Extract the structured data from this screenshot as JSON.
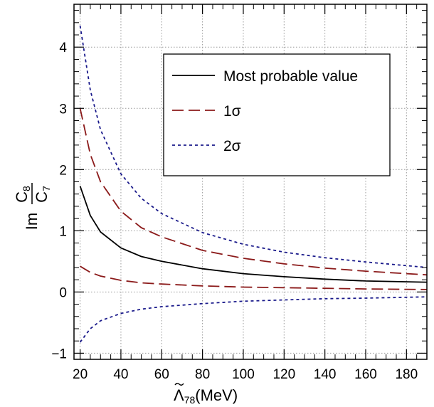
{
  "chart_data": {
    "type": "line",
    "title": "",
    "xlabel": {
      "symbol": "Λ",
      "sub": "78",
      "unit": "(MeV)"
    },
    "ylabel": {
      "prefix": "Im",
      "numerator": "C",
      "numerator_sub": "8",
      "denominator": "C",
      "denominator_sub": "7"
    },
    "xlim": [
      17,
      190
    ],
    "ylim": [
      -1.1,
      4.7
    ],
    "xticks": [
      "20",
      "40",
      "60",
      "80",
      "100",
      "120",
      "140",
      "160",
      "180"
    ],
    "yticks": [
      "−1",
      "0",
      "1",
      "2",
      "3",
      "4"
    ],
    "grid": true,
    "legend_position": "top-right",
    "series": [
      {
        "name": "Most probable value",
        "style": "solid",
        "color": "#000000",
        "x": [
          20,
          25,
          30,
          40,
          50,
          60,
          80,
          100,
          120,
          140,
          160,
          190
        ],
        "y": [
          1.73,
          1.25,
          0.98,
          0.72,
          0.58,
          0.5,
          0.38,
          0.3,
          0.25,
          0.21,
          0.18,
          0.16
        ]
      },
      {
        "name": "1σ",
        "style": "dashed",
        "color": "#8b1a1a",
        "x": [
          20,
          25,
          30,
          40,
          50,
          60,
          80,
          100,
          120,
          140,
          160,
          190
        ],
        "y": [
          3.0,
          2.25,
          1.8,
          1.32,
          1.05,
          0.9,
          0.68,
          0.55,
          0.46,
          0.39,
          0.34,
          0.28
        ]
      },
      {
        "name": "",
        "style": "dashed",
        "color": "#8b1a1a",
        "x": [
          20,
          25,
          30,
          40,
          50,
          60,
          80,
          100,
          120,
          140,
          160,
          190
        ],
        "y": [
          0.42,
          0.32,
          0.26,
          0.19,
          0.15,
          0.13,
          0.1,
          0.08,
          0.07,
          0.06,
          0.05,
          0.04
        ]
      },
      {
        "name": "2σ",
        "style": "dotted",
        "color": "#1a1a8b",
        "x": [
          20,
          25,
          30,
          40,
          50,
          60,
          80,
          100,
          120,
          140,
          160,
          190
        ],
        "y": [
          4.35,
          3.3,
          2.65,
          1.93,
          1.53,
          1.28,
          0.97,
          0.78,
          0.65,
          0.56,
          0.49,
          0.4
        ]
      },
      {
        "name": "",
        "style": "dotted",
        "color": "#1a1a8b",
        "x": [
          20,
          25,
          30,
          40,
          50,
          60,
          80,
          100,
          120,
          140,
          160,
          190
        ],
        "y": [
          -0.82,
          -0.6,
          -0.47,
          -0.35,
          -0.28,
          -0.24,
          -0.19,
          -0.15,
          -0.13,
          -0.11,
          -0.1,
          -0.08
        ]
      }
    ]
  }
}
